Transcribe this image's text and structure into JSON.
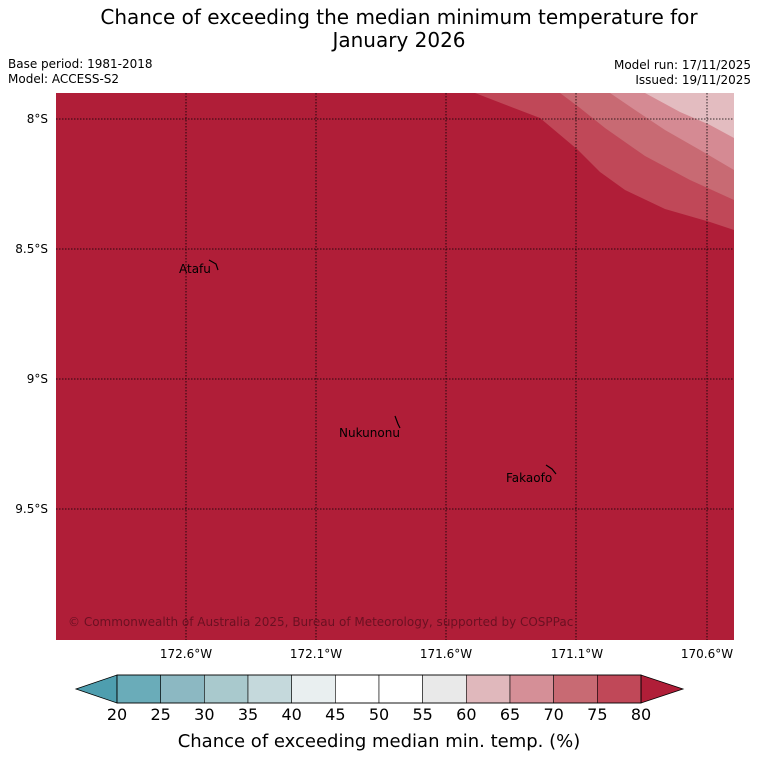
{
  "header": {
    "title_line1": "Chance of exceeding the median minimum temperature for",
    "title_line2": "January 2026",
    "base_period": "Base period: 1981-2018",
    "model": "Model: ACCESS-S2",
    "model_run": "Model run: 17/11/2025",
    "issued": "Issued: 19/11/2025"
  },
  "map": {
    "lat_labels": [
      "8°S",
      "8.5°S",
      "9°S",
      "9.5°S"
    ],
    "lon_labels": [
      "172.6°W",
      "172.1°W",
      "171.6°W",
      "171.1°W",
      "170.6°W"
    ],
    "places": [
      "Atafu",
      "Nukunonu",
      "Fakaofo"
    ],
    "copyright": "© Commonwealth of Australia 2025, Bureau of Meteorology, supported by COSPPac",
    "fill_percent_range": "80+",
    "colors": {
      "above_80": "#b01e38",
      "70_75": "#c86a73",
      "75_80": "#c04858",
      "60_70": "#d58a93",
      "lightest": "#e3bcc0"
    }
  },
  "colorbar": {
    "ticks": [
      "20",
      "25",
      "30",
      "35",
      "40",
      "45",
      "50",
      "55",
      "60",
      "65",
      "70",
      "75",
      "80"
    ],
    "segment_colors": [
      "#6aacb9",
      "#8cb8c2",
      "#a9c9cd",
      "#c5d9dc",
      "#e9eff0",
      "#ffffff",
      "#ffffff",
      "#e9e9e9",
      "#e0b8bc",
      "#d58f97",
      "#c86a73",
      "#c04858"
    ],
    "low_extend_color": "#4e9eaf",
    "high_extend_color": "#b01e38",
    "label": "Chance of exceeding median min. temp. (%)"
  }
}
